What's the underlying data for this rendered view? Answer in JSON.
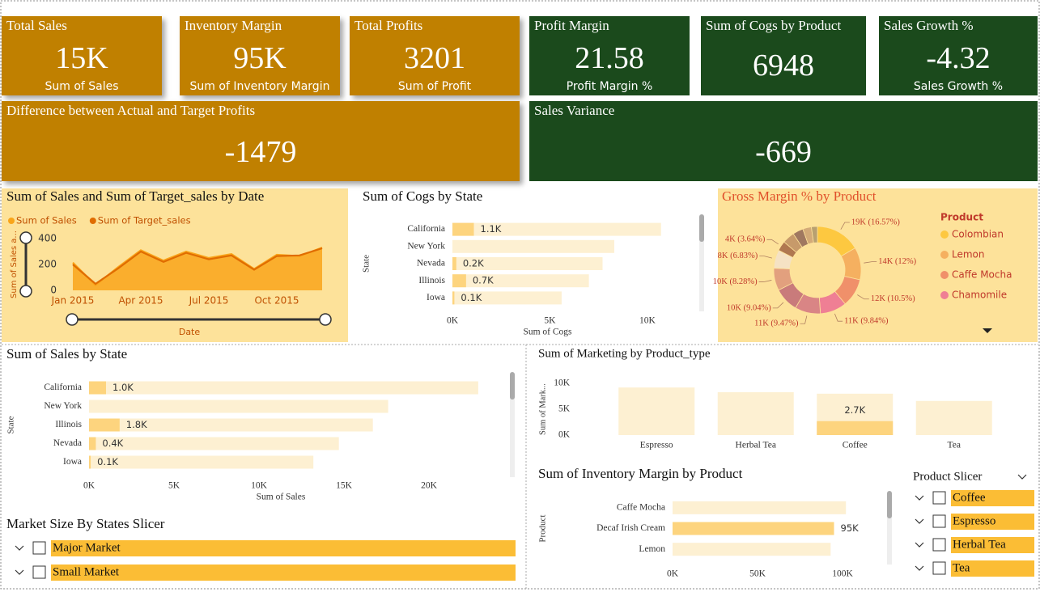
{
  "cards": [
    {
      "title": "Total Sales",
      "value": "15K",
      "subtitle": "Sum of Sales",
      "color": "#c08000"
    },
    {
      "title": "Inventory Margin",
      "value": "95K",
      "subtitle": "Sum of Inventory Margin",
      "color": "#c08000"
    },
    {
      "title": "Total Profits",
      "value": "3201",
      "subtitle": "Sum of Profit",
      "color": "#c08000"
    },
    {
      "title": "Profit Margin",
      "value": "21.58",
      "subtitle": "Profit Margin %",
      "color": "#1b4a1c"
    },
    {
      "title": "Sum of Cogs by Product",
      "value": "6948",
      "color": "#1b4a1c"
    },
    {
      "title": "Sales Growth %",
      "value": "-4.32",
      "subtitle": "Sales Growth %",
      "color": "#1b4a1c"
    },
    {
      "title": "Difference between Actual and Target Profits",
      "value": "-1479",
      "color": "#c08000"
    },
    {
      "title": "Sales Variance",
      "value": "-669",
      "color": "#1b4a1c"
    }
  ],
  "chart_data": [
    {
      "type": "line",
      "title": "Sum of Sales and Sum of Target_sales by Date",
      "x": [
        "Jan 2015",
        null,
        null,
        "Apr 2015",
        null,
        null,
        "Jul 2015",
        null,
        null,
        "Oct 2015",
        null,
        null
      ],
      "series": [
        {
          "name": "Sum of Sales",
          "color": "#f9a51a",
          "values": [
            215,
            40,
            180,
            310,
            230,
            300,
            250,
            280,
            165,
            275,
            265,
            330
          ]
        },
        {
          "name": "Sum of Target_sales",
          "color": "#e06c00",
          "values": [
            200,
            50,
            170,
            300,
            220,
            290,
            240,
            270,
            160,
            265,
            270,
            325
          ]
        }
      ],
      "ylim": [
        0,
        400
      ],
      "yticks": [
        0,
        200,
        400
      ],
      "xlabel": "Date",
      "ylabel": "Sum of Sales a..."
    },
    {
      "type": "bar",
      "orientation": "horizontal",
      "title": "Sum of Cogs by State",
      "categories": [
        "California",
        "New York",
        "Nevada",
        "Illinois",
        "Iowa"
      ],
      "series": [
        {
          "color": "#fdf0d2",
          "values": [
            10700,
            8300,
            7700,
            7000,
            5600
          ]
        },
        {
          "color": "#fdd47e",
          "values": [
            1100,
            null,
            200,
            700,
            100
          ],
          "value_labels": [
            "1.1K",
            null,
            "0.2K",
            "0.7K",
            "0.1K"
          ]
        }
      ],
      "xlim": [
        0,
        11000
      ],
      "xticks": [
        {
          "value": 0,
          "label": "0K"
        },
        {
          "value": 5000,
          "label": "5K"
        },
        {
          "value": 10000,
          "label": "10K"
        }
      ],
      "xlabel": "Sum of Cogs",
      "ylabel": "State"
    },
    {
      "type": "donut",
      "title": "Gross Margin % by Product",
      "title_color": "#e0502a",
      "legend_title": "Product",
      "categories": [
        "Colombian",
        "Lemon",
        "Caffe Mocha",
        "Chamomile",
        null,
        null,
        null,
        null,
        null,
        null,
        null,
        null,
        null
      ],
      "values": [
        16.57,
        12,
        10.5,
        9.84,
        9.47,
        9.04,
        8.28,
        6.83,
        3.64,
        4.5,
        3.9,
        3.2,
        2.23
      ],
      "value_labels": [
        "19K (16.57%)",
        "14K (12%)",
        "12K (10.5%)",
        "11K (9.84%)",
        "11K (9.47%)",
        "10K (9.04%)",
        "10K (8.28%)",
        "8K (6.83%)",
        "4K (3.64%)",
        null,
        null,
        null,
        null
      ],
      "colors": [
        "#fdc840",
        "#f5b060",
        "#f0906a",
        "#ef7f94",
        "#d98585",
        "#c97b7b",
        "#e2a07e",
        "#f5e2c4",
        "#b07850",
        "#c79a6a",
        "#a07860",
        "#d3aa78",
        "#b8a070"
      ]
    },
    {
      "type": "bar",
      "orientation": "horizontal",
      "title": "Sum of Sales by State",
      "categories": [
        "California",
        "New York",
        "Illinois",
        "Nevada",
        "Iowa"
      ],
      "series": [
        {
          "color": "#fdf0d2",
          "values": [
            22900,
            17600,
            16700,
            14700,
            13200
          ]
        },
        {
          "color": "#fdd47e",
          "values": [
            1000,
            null,
            1800,
            400,
            100
          ],
          "value_labels": [
            "1.0K",
            null,
            "1.8K",
            "0.4K",
            "0.1K"
          ]
        }
      ],
      "xlim": [
        0,
        24000
      ],
      "xticks": [
        {
          "value": 0,
          "label": "0K"
        },
        {
          "value": 5000,
          "label": "5K"
        },
        {
          "value": 10000,
          "label": "10K"
        },
        {
          "value": 15000,
          "label": "15K"
        },
        {
          "value": 20000,
          "label": "20K"
        }
      ],
      "xlabel": "Sum of Sales",
      "ylabel": "State"
    },
    {
      "type": "bar",
      "orientation": "vertical",
      "title": "Sum of Marketing by Product_type",
      "categories": [
        "Espresso",
        "Herbal Tea",
        "Coffee",
        "Tea"
      ],
      "series": [
        {
          "color": "#fdf0d2",
          "values": [
            9200,
            8300,
            8000,
            6600
          ]
        },
        {
          "color": "#fdd47e",
          "values": [
            null,
            null,
            2700,
            null
          ],
          "value_labels": [
            null,
            null,
            "2.7K",
            null
          ]
        }
      ],
      "ylim": [
        0,
        10000
      ],
      "yticks": [
        {
          "value": 0,
          "label": "0K"
        },
        {
          "value": 5000,
          "label": "5K"
        },
        {
          "value": 10000,
          "label": "10K"
        }
      ],
      "ylabel": "Sum of Mark..."
    },
    {
      "type": "bar",
      "orientation": "horizontal",
      "title": "Sum of Inventory Margin by Product",
      "categories": [
        "Caffe Mocha",
        "Decaf Irish Cream",
        "Lemon"
      ],
      "series": [
        {
          "color": "#fdf0d2",
          "values": [
            102000,
            95000,
            93000
          ]
        },
        {
          "color": "#fdd47e",
          "values": [
            null,
            95000,
            null
          ],
          "value_labels": [
            null,
            "95K",
            null
          ]
        }
      ],
      "xlim": [
        0,
        110000
      ],
      "xticks": [
        {
          "value": 0,
          "label": "0K"
        },
        {
          "value": 50000,
          "label": "50K"
        },
        {
          "value": 100000,
          "label": "100K"
        }
      ],
      "ylabel": "Product"
    }
  ],
  "slicers": [
    {
      "title": "Market Size By States Slicer",
      "items": [
        "Major Market",
        "Small Market"
      ]
    },
    {
      "title": "Product Slicer",
      "items": [
        "Coffee",
        "Espresso",
        "Herbal Tea",
        "Tea"
      ]
    }
  ]
}
